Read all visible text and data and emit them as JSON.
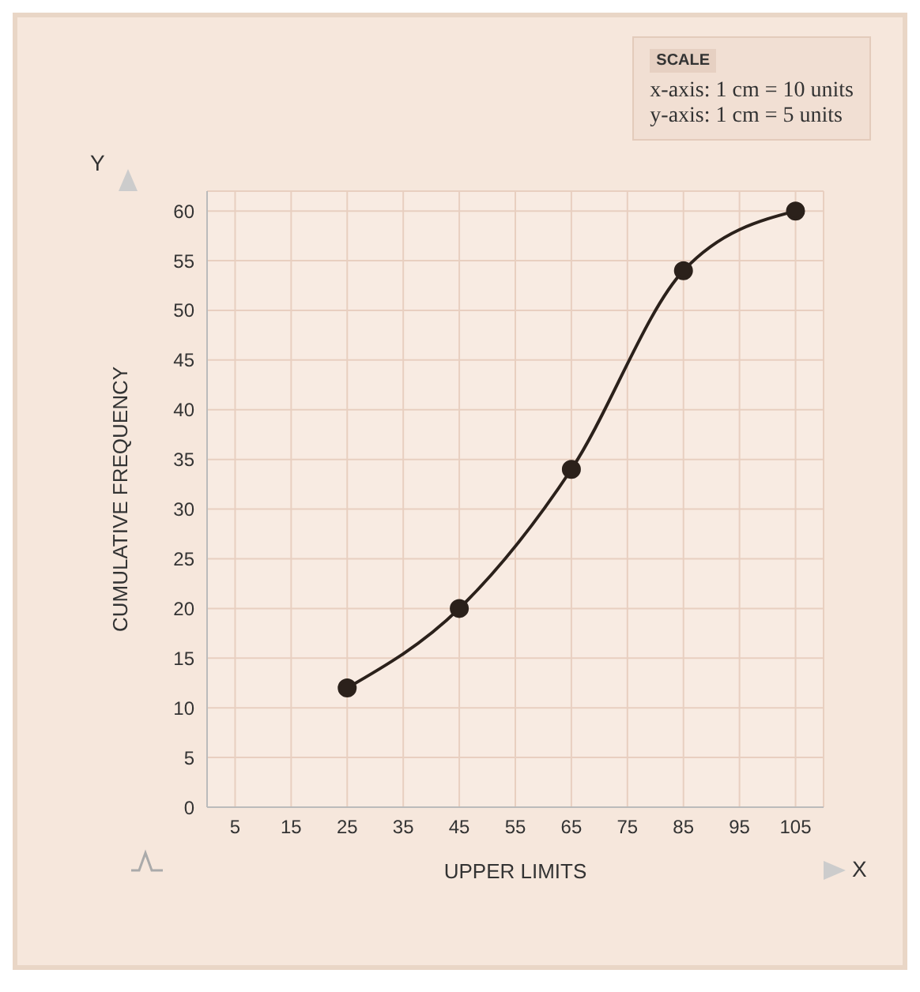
{
  "chart_data": {
    "type": "line",
    "xlabel": "UPPER LIMITS",
    "ylabel": "CUMULATIVE FREQUENCY",
    "x": [
      25,
      45,
      65,
      85,
      105
    ],
    "series": [
      {
        "color": "#2b211b",
        "values": [
          12,
          20,
          34,
          54,
          60
        ]
      }
    ],
    "xlim": [
      0,
      110
    ],
    "xticks": [
      5,
      15,
      25,
      35,
      45,
      55,
      65,
      75,
      85,
      95,
      105
    ],
    "ylim": [
      0,
      62
    ],
    "yticks": [
      0,
      5,
      10,
      15,
      20,
      25,
      30,
      35,
      40,
      45,
      50,
      55,
      60
    ],
    "grid": true,
    "marker": "circle",
    "line_style": "solid",
    "legend": false,
    "annotations": [
      "SCALE",
      "x-axis: 1 cm = 10 units",
      "y-axis: 1 cm = 5 units",
      "X",
      "Y"
    ]
  }
}
